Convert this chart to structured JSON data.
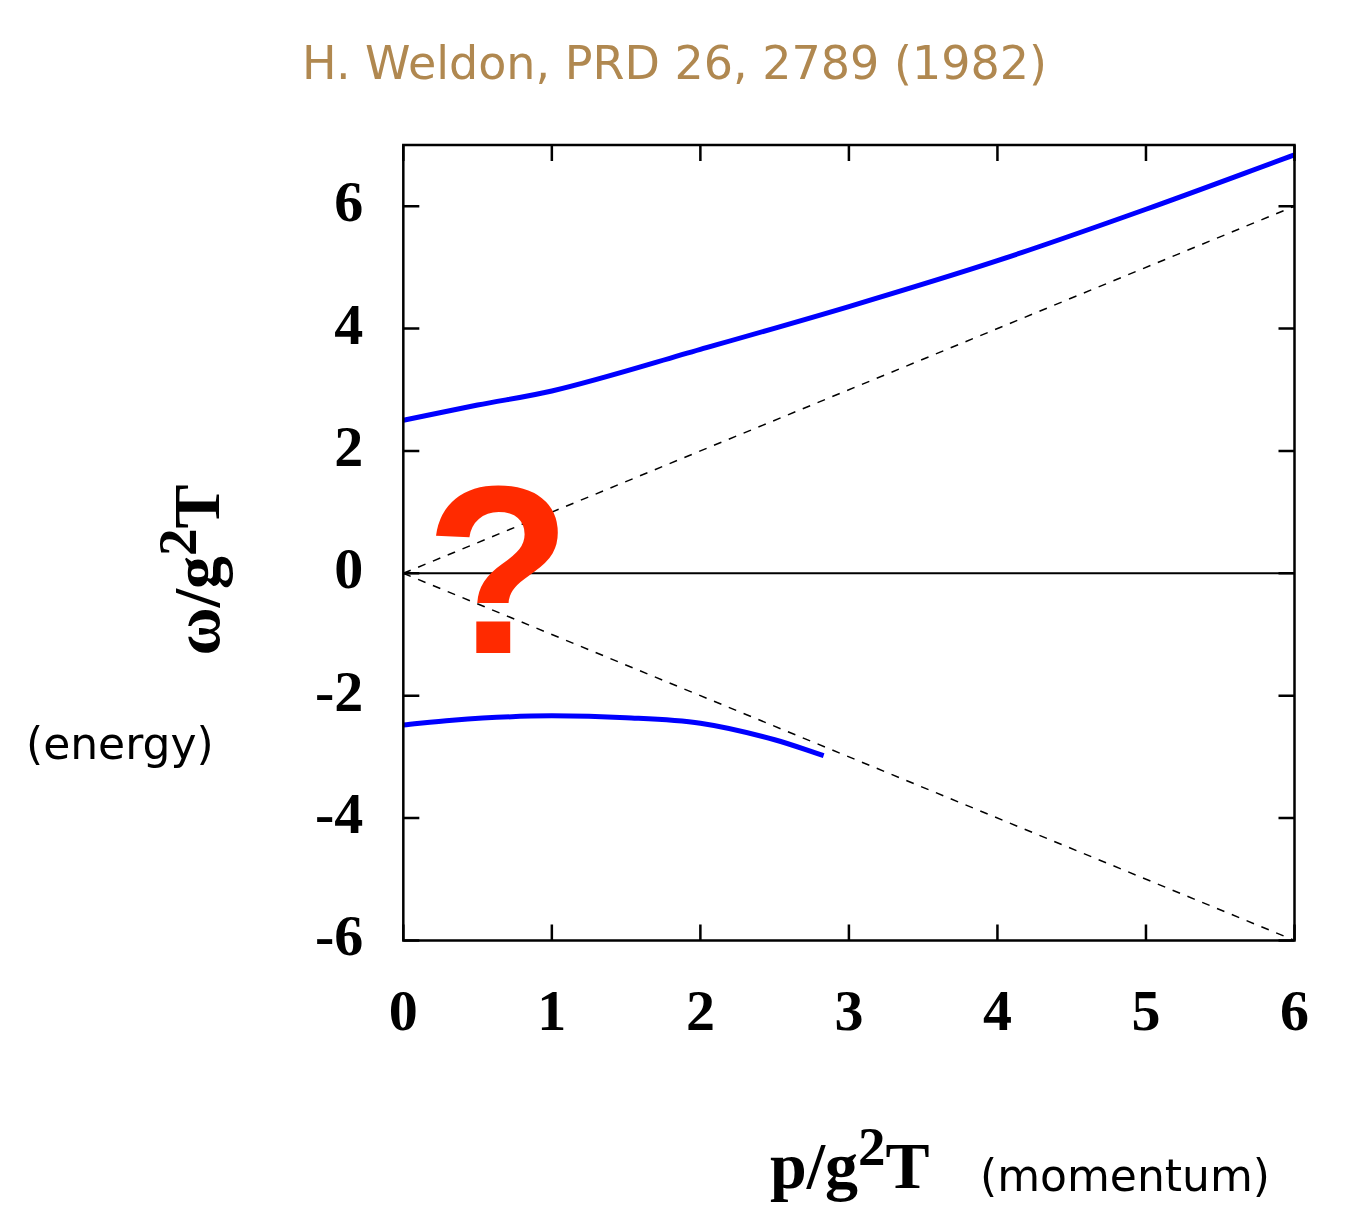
{
  "chart_data": {
    "type": "line",
    "title": "H. Weldon, PRD 26, 2789 (1982)",
    "xlabel": "p/g$^{2}$T",
    "ylabel": "ω/g$^{2}$T",
    "annotations": [
      "?",
      "(energy)",
      "(momentum)"
    ],
    "xlim": [
      0,
      6
    ],
    "xticks": [
      0,
      1,
      2,
      3,
      4,
      5,
      6
    ],
    "ylim": [
      -6,
      7
    ],
    "yticks": [
      -6,
      -4,
      -2,
      0,
      2,
      4,
      6
    ],
    "series": [
      {
        "color": "#0000ff",
        "line_style": "solid",
        "x": [
          0,
          0.5,
          1,
          2,
          3,
          4,
          5,
          6
        ],
        "values": [
          2.5,
          2.75,
          2.98,
          3.66,
          4.36,
          5.11,
          5.95,
          6.84
        ]
      },
      {
        "color": "#0000ff",
        "line_style": "solid",
        "x": [
          0,
          0.33,
          1,
          1.5,
          2,
          2.5,
          2.83
        ],
        "values": [
          -2.48,
          -2.4,
          -2.33,
          -2.36,
          -2.45,
          -2.72,
          -2.98
        ]
      },
      {
        "color": "#000000",
        "line_style": "dashed",
        "x": [
          0,
          6
        ],
        "values": [
          0,
          6
        ]
      },
      {
        "color": "#000000",
        "line_style": "dashed",
        "x": [
          0,
          6
        ],
        "values": [
          0,
          -6
        ]
      }
    ],
    "ref_lines": [
      {
        "axis": "y",
        "value": 0,
        "color": "#000000",
        "line_style": "solid"
      }
    ],
    "grid": false,
    "legend": false,
    "marker": "none"
  }
}
